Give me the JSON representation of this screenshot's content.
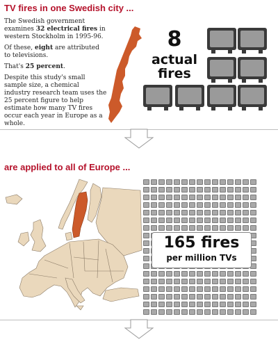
{
  "section1": {
    "title": "TV fires in one Swedish city ...",
    "p1_a": "The Swedish government examines ",
    "p1_b": "32 electrical fires",
    "p1_c": " in western Stockholm in 1995-96.",
    "p2_a": "Of these, ",
    "p2_b": "eight",
    "p2_c": " are attributed to televisions.",
    "p3_a": "That's ",
    "p3_b": "25 percent",
    "p3_c": ".",
    "p4": "Despite this study's small sample size, a chemical industry research team uses the 25 percent figure to help estimate how many TV fires occur each year in Europe as a whole.",
    "big_number": "8",
    "big_label_line1": "actual",
    "big_label_line2": "fires",
    "tv_count": 8
  },
  "section2": {
    "title": "are applied to all of Europe ...",
    "callout_line1": "165 fires",
    "callout_line2": "per million TVs"
  },
  "colors": {
    "accent": "#b5122b",
    "sweden": "#cc5a2a",
    "europe": "#ead8bc",
    "tv": "#3a3a3a",
    "screen": "#9a9a9a",
    "grid_cell": "#a9a9a9"
  }
}
